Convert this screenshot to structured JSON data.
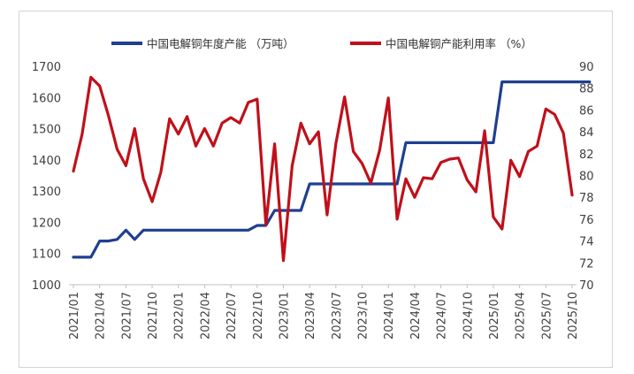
{
  "chart_data": {
    "type": "line",
    "title": "",
    "xlabel": "",
    "x_tick_labels": [
      "2021/01",
      "2021/04",
      "2021/07",
      "2021/10",
      "2022/01",
      "2022/04",
      "2022/07",
      "2022/10",
      "2023/01",
      "2023/04",
      "2023/07",
      "2023/10",
      "2024/01",
      "2024/04",
      "2024/07",
      "2024/10",
      "2025/01",
      "2025/04",
      "2025/07",
      "2025/10"
    ],
    "y_left": {
      "min": 1000,
      "max": 1700,
      "step": 100,
      "ticks": [
        "1000",
        "1100",
        "1200",
        "1300",
        "1400",
        "1500",
        "1600",
        "1700"
      ]
    },
    "y_right": {
      "min": 70,
      "max": 90,
      "step": 2,
      "ticks": [
        "70",
        "72",
        "74",
        "76",
        "78",
        "80",
        "82",
        "84",
        "86",
        "88",
        "90"
      ]
    },
    "grid": false,
    "legend_position": "top",
    "series": [
      {
        "name": "中国电解铜年度产能 （万吨）",
        "axis": "left",
        "color": "#1f3f8f",
        "values": [
          1088,
          1088,
          1088,
          1140,
          1140,
          1145,
          1175,
          1145,
          1175,
          1175,
          1175,
          1175,
          1175,
          1175,
          1175,
          1175,
          1175,
          1175,
          1175,
          1175,
          1175,
          1190,
          1190,
          1238,
          1238,
          1238,
          1238,
          1323,
          1323,
          1323,
          1323,
          1323,
          1323,
          1323,
          1323,
          1323,
          1323,
          1323,
          1455,
          1455,
          1455,
          1455,
          1455,
          1455,
          1455,
          1455,
          1455,
          1455,
          1455,
          1650,
          1650,
          1650,
          1650,
          1650,
          1650,
          1650,
          1650,
          1650,
          1650,
          1650
        ]
      },
      {
        "name": "中国电解铜产能利用率 （%）",
        "axis": "right",
        "color": "#c0101a",
        "values": [
          80.4,
          83.8,
          89.0,
          88.2,
          85.5,
          82.4,
          80.9,
          84.3,
          79.7,
          77.6,
          80.3,
          85.2,
          83.8,
          85.4,
          82.7,
          84.3,
          82.7,
          84.8,
          85.3,
          84.8,
          86.7,
          87.0,
          75.5,
          82.9,
          72.2,
          80.9,
          84.8,
          82.9,
          84.0,
          76.4,
          82.9,
          87.2,
          82.2,
          81.1,
          79.3,
          82.3,
          87.1,
          76.0,
          79.7,
          78.0,
          79.8,
          79.7,
          81.2,
          81.5,
          81.6,
          79.6,
          78.5,
          84.1,
          76.2,
          75.1,
          81.4,
          79.9,
          82.2,
          82.7,
          86.1,
          85.6,
          83.9,
          78.2
        ]
      }
    ]
  }
}
